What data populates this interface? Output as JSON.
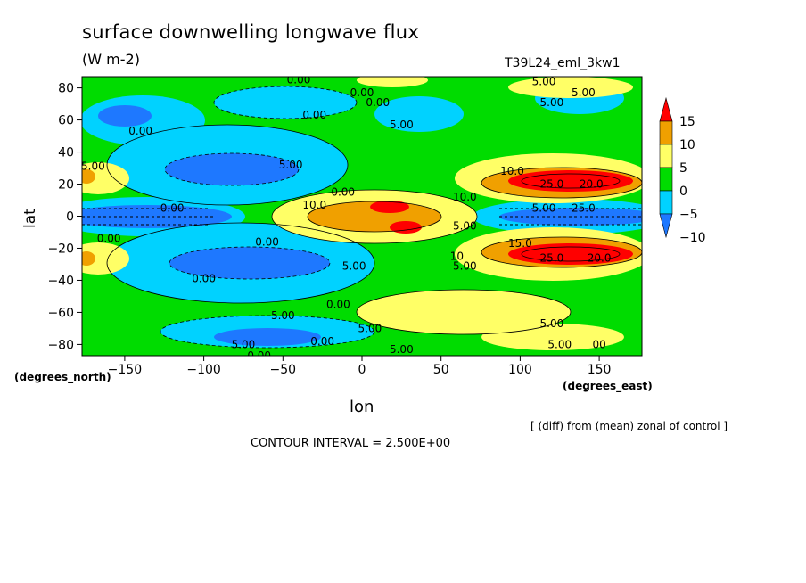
{
  "chart_data": {
    "type": "heatmap",
    "title": "surface downwelling longwave flux",
    "units": "(W m-2)",
    "experiment": "T39L24_eml_3kw1",
    "xlabel": "lon",
    "ylabel": "lat",
    "x_unit_label": "(degrees_east)",
    "y_unit_label": "(degrees_north)",
    "x_ticks": [
      -150,
      -100,
      -50,
      0,
      50,
      100,
      150
    ],
    "y_ticks": [
      80,
      60,
      40,
      20,
      0,
      -20,
      -40,
      -60,
      -80
    ],
    "x_tick_labels": [
      "−150",
      "−100",
      "−50",
      "0",
      "50",
      "100",
      "150"
    ],
    "y_tick_labels": [
      "80",
      "60",
      "40",
      "20",
      "0",
      "−20",
      "−40",
      "−60",
      "−80"
    ],
    "xlim": [
      -177,
      177
    ],
    "ylim": [
      -87,
      87
    ],
    "colorbar": {
      "levels": [
        -10,
        -5,
        0,
        5,
        10,
        15
      ],
      "labels": [
        "−10",
        "−5",
        "0",
        "5",
        "10",
        "15"
      ],
      "colors": [
        "#1e78ff",
        "#00d2ff",
        "#00dc00",
        "#ffff66",
        "#f0a000",
        "#ff0000"
      ]
    },
    "contour_interval_text": "CONTOUR INTERVAL = 2.500E+00",
    "annotation": "[ (diff) from (mean) zonal of control ]",
    "contour_labels": [
      {
        "lon": -40,
        "lat": 85,
        "text": "0.00"
      },
      {
        "lon": 0,
        "lat": 77,
        "text": "0.00"
      },
      {
        "lon": 10,
        "lat": 71,
        "text": "0.00"
      },
      {
        "lon": -30,
        "lat": 63,
        "text": "0.00"
      },
      {
        "lon": 25,
        "lat": 57,
        "text": "5.00"
      },
      {
        "lon": -140,
        "lat": 53,
        "text": "0.00"
      },
      {
        "lon": 115,
        "lat": 84,
        "text": "5.00"
      },
      {
        "lon": 140,
        "lat": 77,
        "text": "5.00"
      },
      {
        "lon": 120,
        "lat": 71,
        "text": "5.00"
      },
      {
        "lon": -45,
        "lat": 32,
        "text": "5.00"
      },
      {
        "lon": -170,
        "lat": 31,
        "text": "5.00"
      },
      {
        "lon": -12,
        "lat": 15,
        "text": "0.00"
      },
      {
        "lon": -30,
        "lat": 7,
        "text": "10.0"
      },
      {
        "lon": -120,
        "lat": 5,
        "text": "0.00"
      },
      {
        "lon": -160,
        "lat": -14,
        "text": "0.00"
      },
      {
        "lon": -60,
        "lat": -16,
        "text": "0.00"
      },
      {
        "lon": 65,
        "lat": 12,
        "text": "10.0"
      },
      {
        "lon": 95,
        "lat": 28,
        "text": "10.0"
      },
      {
        "lon": 120,
        "lat": 20,
        "text": "25.0"
      },
      {
        "lon": 145,
        "lat": 20,
        "text": "20.0"
      },
      {
        "lon": 115,
        "lat": 5,
        "text": "5.00"
      },
      {
        "lon": 140,
        "lat": 5,
        "text": "25.0"
      },
      {
        "lon": 65,
        "lat": -6,
        "text": "5.00"
      },
      {
        "lon": 100,
        "lat": -17,
        "text": "15.0"
      },
      {
        "lon": 120,
        "lat": -26,
        "text": "25.0"
      },
      {
        "lon": 150,
        "lat": -26,
        "text": "20.0"
      },
      {
        "lon": 60,
        "lat": -25,
        "text": "10"
      },
      {
        "lon": 65,
        "lat": -31,
        "text": "5.00"
      },
      {
        "lon": -5,
        "lat": -31,
        "text": "5.00"
      },
      {
        "lon": -100,
        "lat": -39,
        "text": "0.00"
      },
      {
        "lon": -50,
        "lat": -62,
        "text": "5.00"
      },
      {
        "lon": -15,
        "lat": -55,
        "text": "0.00"
      },
      {
        "lon": 5,
        "lat": -70,
        "text": "5.00"
      },
      {
        "lon": -75,
        "lat": -80,
        "text": "5.00"
      },
      {
        "lon": -25,
        "lat": -78,
        "text": "0.00"
      },
      {
        "lon": 25,
        "lat": -83,
        "text": "5.00"
      },
      {
        "lon": 120,
        "lat": -67,
        "text": "5.00"
      },
      {
        "lon": 125,
        "lat": -80,
        "text": "5.00"
      },
      {
        "lon": 150,
        "lat": -80,
        "text": "00"
      },
      {
        "lon": -65,
        "lat": -87,
        "text": "0.00"
      }
    ]
  }
}
